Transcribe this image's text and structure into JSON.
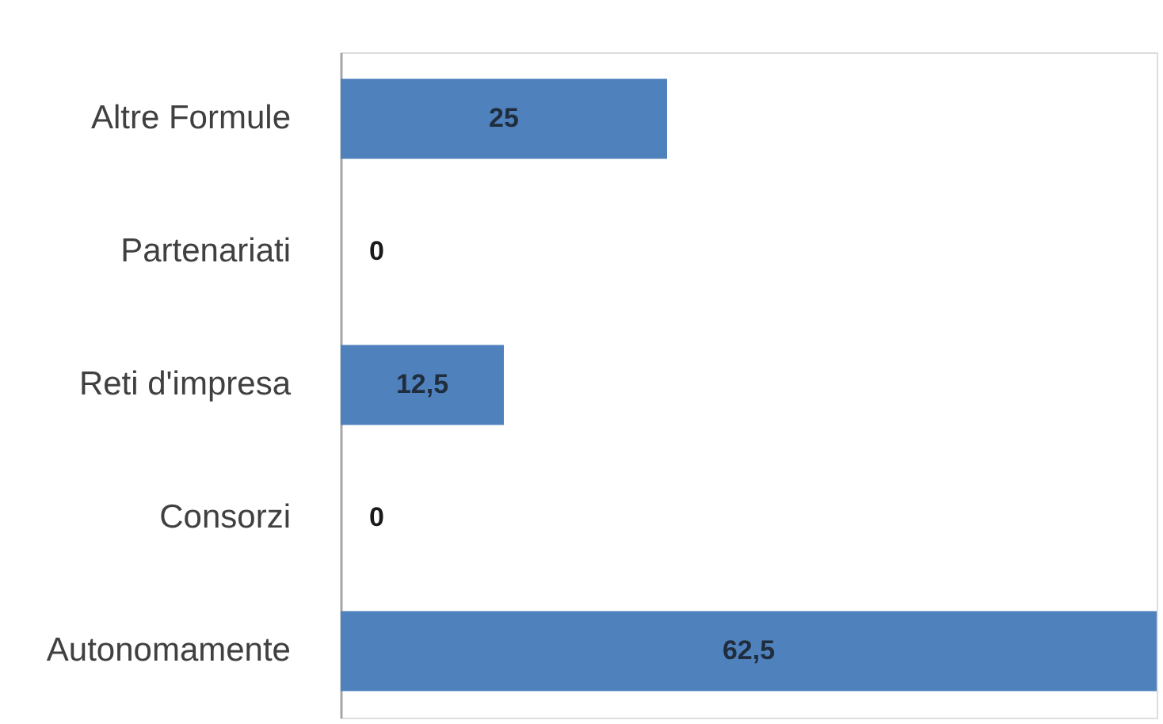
{
  "chart_data": {
    "type": "bar",
    "orientation": "horizontal",
    "tick_labels": "y",
    "categories": [
      "Altre Formule",
      "Partenariati",
      "Reti d'impresa",
      "Consorzi",
      "Autonomamente"
    ],
    "values": [
      25,
      0,
      12.5,
      0,
      62.5
    ],
    "value_labels": [
      "25",
      "0",
      "12,5",
      "0",
      "62,5"
    ],
    "color": "#4f81bd"
  }
}
